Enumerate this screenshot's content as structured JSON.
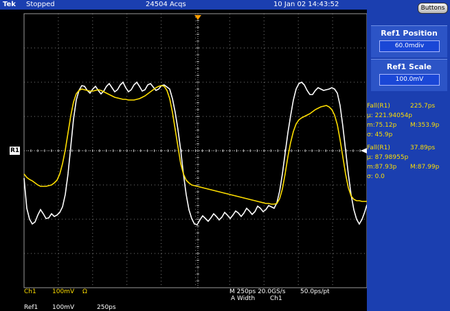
{
  "header": {
    "brand": "Tek",
    "status": "Stopped",
    "acquisitions": "24504 Acqs",
    "datetime": "10 Jan 02 14:43:52"
  },
  "side_panel": {
    "buttons_label": "Buttons",
    "ref_position": {
      "title": "Ref1 Position",
      "value": "60.0mdiv"
    },
    "ref_scale": {
      "title": "Ref1 Scale",
      "value": "100.0mV"
    }
  },
  "ref_marker": {
    "label": "R1"
  },
  "measurements": [
    {
      "name": "Fall(R1)",
      "value": "225.7ps",
      "mean": "µ: 221.94054p",
      "min": "m:75.12p",
      "max": "M:353.9p",
      "sigma": "σ: 45.9p"
    },
    {
      "name": "Fall(R1)",
      "value": "37.89ps",
      "mean": "µ: 87.98955p",
      "min": "m:87.93p",
      "max": "M:87.99p",
      "sigma": "σ: 0.0"
    }
  ],
  "bottom": {
    "ch1": "Ch1",
    "ch1_scale": "100mV",
    "ch1_coupling": "Ω",
    "ref1": "Ref1",
    "ref1_scale": "100mV",
    "ref1_time": "250ps",
    "timebase": "M 250ps 20.0GS/s",
    "record": "50.0ps/pt",
    "trigger": "A Width",
    "trigger_source": "Ch1"
  },
  "colors": {
    "ch1": "#ffdf00",
    "ref1": "#ffffff",
    "panel": "#1b3fb0"
  }
}
